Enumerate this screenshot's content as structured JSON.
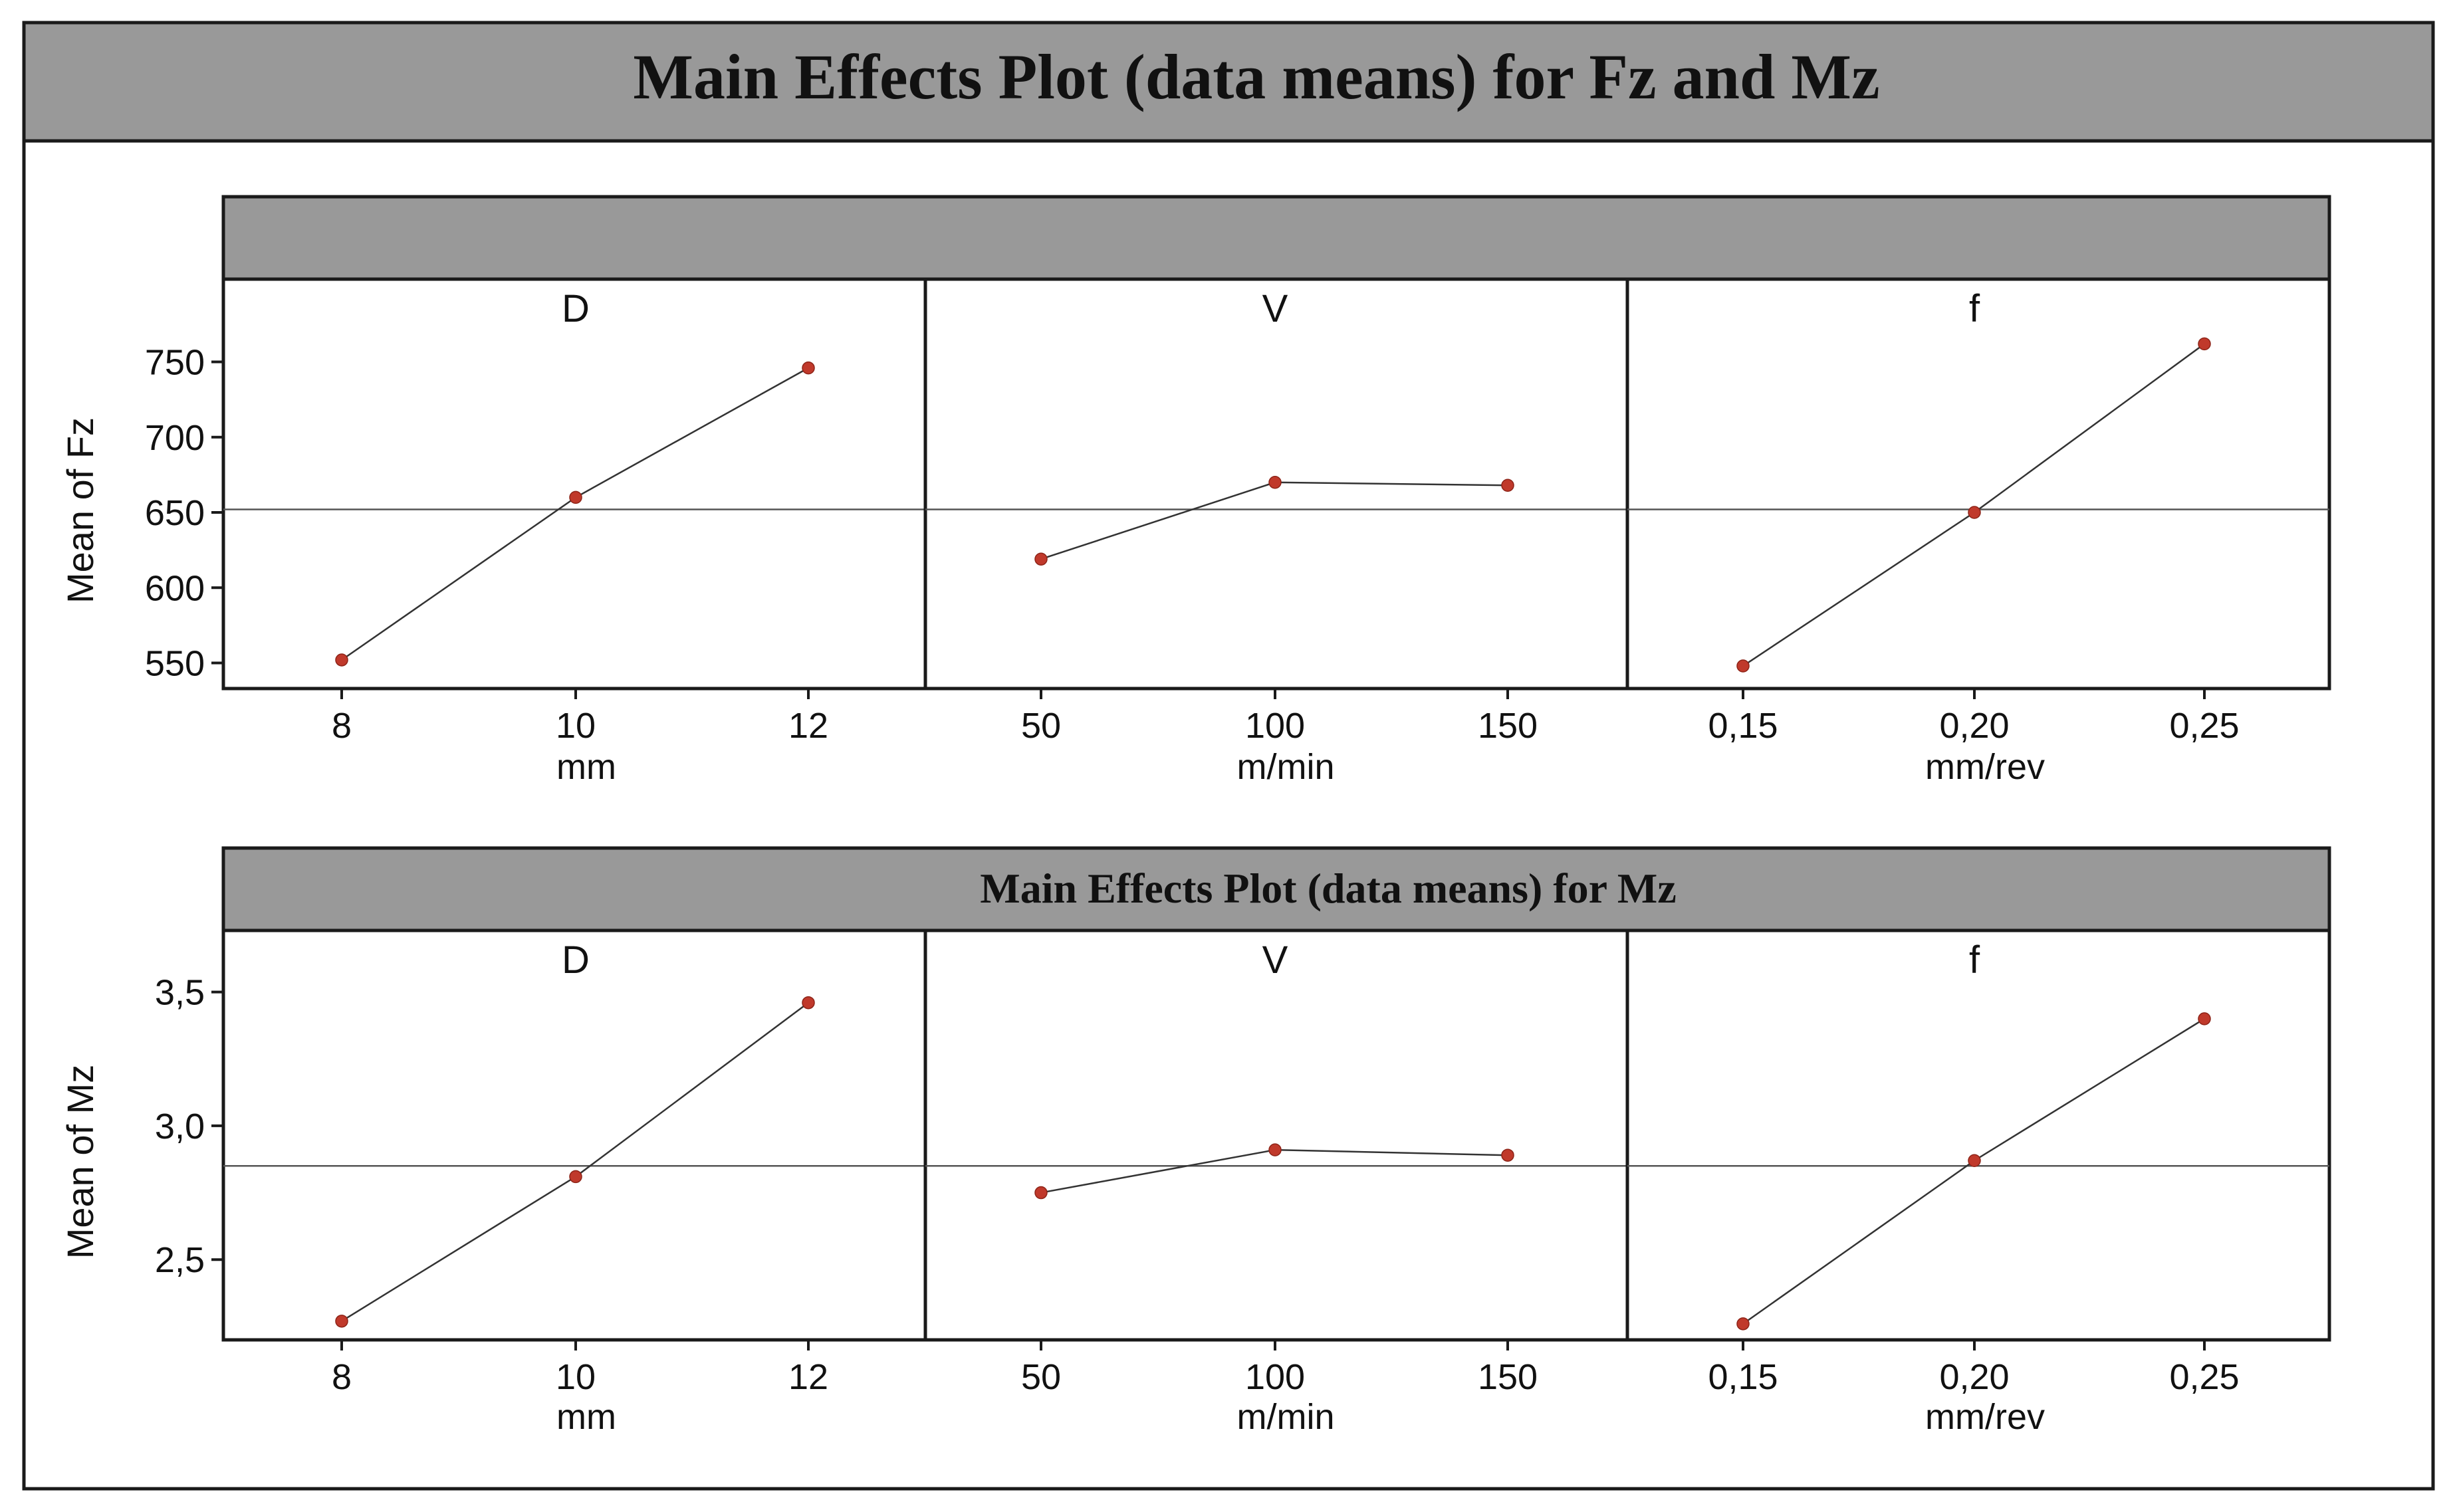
{
  "figure": {
    "title": "Main Effects Plot (data means) for Fz and Mz",
    "colors": {
      "header_fill": "#999999",
      "panel_bg": "#ffffff",
      "frame": "#1a1a1a",
      "line": "#333333",
      "point": "#c0392b"
    }
  },
  "chart_data": [
    {
      "type": "line",
      "title": "",
      "ylabel": "Mean of Fz",
      "ylim": [
        533,
        805
      ],
      "yticks": [
        550,
        600,
        650,
        700,
        750
      ],
      "ytick_labels": [
        "550",
        "600",
        "650",
        "700",
        "750"
      ],
      "reference_mean": 652,
      "panels": [
        {
          "factor": "D",
          "xlabel": "mm",
          "x": [
            8,
            10,
            12
          ],
          "x_tick_labels": [
            "8",
            "10",
            "12"
          ],
          "values": [
            552,
            660,
            746
          ]
        },
        {
          "factor": "V",
          "xlabel": "m/min",
          "x": [
            50,
            100,
            150
          ],
          "x_tick_labels": [
            "50",
            "100",
            "150"
          ],
          "values": [
            619,
            670,
            668
          ]
        },
        {
          "factor": "f",
          "xlabel": "mm/rev",
          "x": [
            0.15,
            0.2,
            0.25
          ],
          "x_tick_labels": [
            "0,15",
            "0,20",
            "0,25"
          ],
          "values": [
            548,
            650,
            762
          ]
        }
      ]
    },
    {
      "type": "line",
      "title": "Main Effects Plot (data means) for Mz",
      "ylabel": "Mean of Mz",
      "ylim": [
        2.2,
        3.73
      ],
      "yticks": [
        2.5,
        3.0,
        3.5
      ],
      "ytick_labels": [
        "2,5",
        "3,0",
        "3,5"
      ],
      "reference_mean": 2.85,
      "panels": [
        {
          "factor": "D",
          "xlabel": "mm",
          "x": [
            8,
            10,
            12
          ],
          "x_tick_labels": [
            "8",
            "10",
            "12"
          ],
          "values": [
            2.27,
            2.81,
            3.46
          ]
        },
        {
          "factor": "V",
          "xlabel": "m/min",
          "x": [
            50,
            100,
            150
          ],
          "x_tick_labels": [
            "50",
            "100",
            "150"
          ],
          "values": [
            2.75,
            2.91,
            2.89
          ]
        },
        {
          "factor": "f",
          "xlabel": "mm/rev",
          "x": [
            0.15,
            0.2,
            0.25
          ],
          "x_tick_labels": [
            "0,15",
            "0,20",
            "0,25"
          ],
          "values": [
            2.26,
            2.87,
            3.4
          ]
        }
      ]
    }
  ]
}
